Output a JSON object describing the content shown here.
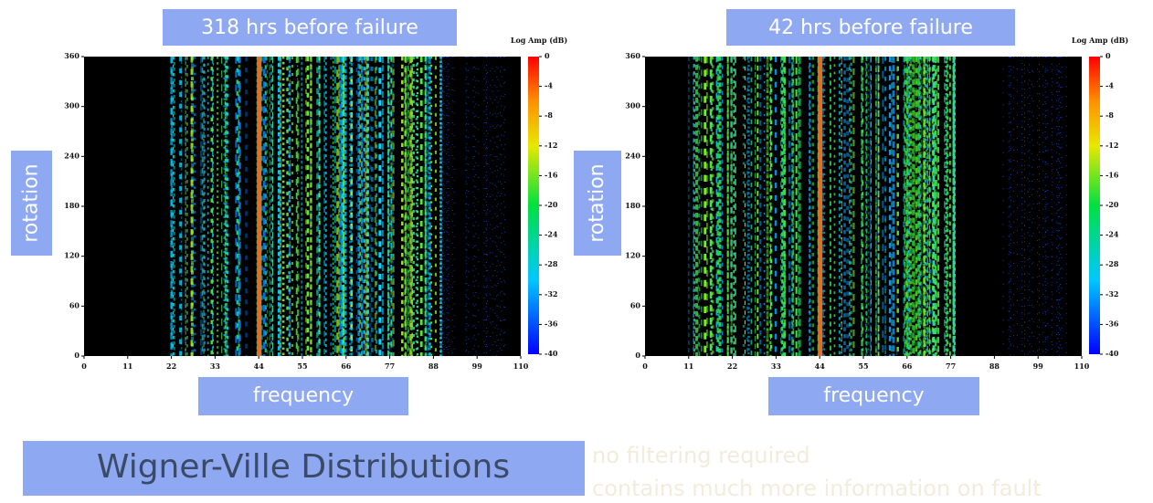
{
  "chart_data": [
    {
      "type": "spectrogram",
      "title": "318 hrs before failure",
      "x_label": "frequency",
      "y_label": "rotation",
      "xlim": [
        0,
        110
      ],
      "xticks": [
        0,
        11,
        22,
        33,
        44,
        55,
        66,
        77,
        88,
        99,
        110
      ],
      "ylim": [
        0,
        360
      ],
      "yticks": [
        0,
        60,
        120,
        180,
        240,
        300,
        360
      ],
      "colorbar": {
        "label": "Log Amp (dB)",
        "lim": [
          -40,
          0
        ],
        "ticks": [
          0,
          -4,
          -8,
          -12,
          -16,
          -20,
          -24,
          -28,
          -32,
          -36,
          -40
        ]
      }
    },
    {
      "type": "spectrogram",
      "title": "42 hrs before failure",
      "x_label": "frequency",
      "y_label": "rotation",
      "xlim": [
        0,
        110
      ],
      "xticks": [
        0,
        11,
        22,
        33,
        44,
        55,
        66,
        77,
        88,
        99,
        110
      ],
      "ylim": [
        0,
        360
      ],
      "yticks": [
        0,
        60,
        120,
        180,
        240,
        300,
        360
      ],
      "colorbar": {
        "label": "Log Amp (dB)",
        "lim": [
          -40,
          0
        ],
        "ticks": [
          0,
          -4,
          -8,
          -12,
          -16,
          -20,
          -24,
          -28,
          -32,
          -36,
          -40
        ]
      }
    }
  ],
  "heading": "Wigner-Ville Distributions",
  "bullets": [
    "no filtering required",
    "contains much more information on fault"
  ]
}
